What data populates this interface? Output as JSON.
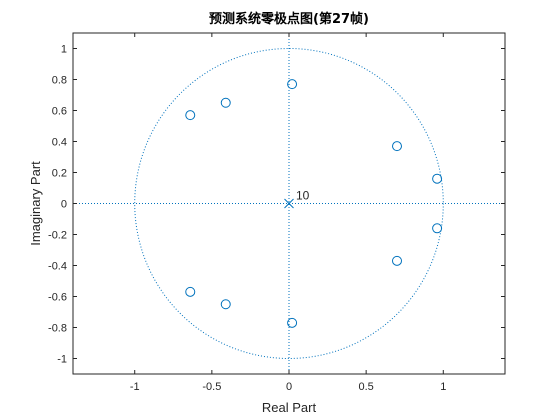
{
  "chart_data": {
    "type": "scatter",
    "title": "预测系统零极点图(第27帧)",
    "xlabel": "Real Part",
    "ylabel": "Imaginary Part",
    "xlim": [
      -1.4,
      1.4
    ],
    "ylim": [
      -1.1,
      1.1
    ],
    "xticks": [
      -1,
      -0.5,
      0,
      0.5,
      1
    ],
    "xtick_labels": [
      "-1",
      "-0.5",
      "0",
      "0.5",
      "1"
    ],
    "yticks": [
      -1,
      -0.8,
      -0.6,
      -0.4,
      -0.2,
      0,
      0.2,
      0.4,
      0.6,
      0.8,
      1
    ],
    "ytick_labels": [
      "-1",
      "-0.8",
      "-0.6",
      "-0.4",
      "-0.2",
      "0",
      "0.2",
      "0.4",
      "0.6",
      "0.8",
      "1"
    ],
    "grid": false,
    "unit_circle": true,
    "zeros": [
      {
        "x": 0.02,
        "y": 0.77
      },
      {
        "x": -0.41,
        "y": 0.65
      },
      {
        "x": -0.64,
        "y": 0.57
      },
      {
        "x": 0.7,
        "y": 0.37
      },
      {
        "x": 0.96,
        "y": 0.16
      },
      {
        "x": 0.96,
        "y": -0.16
      },
      {
        "x": 0.7,
        "y": -0.37
      },
      {
        "x": -0.64,
        "y": -0.57
      },
      {
        "x": -0.41,
        "y": -0.65
      },
      {
        "x": 0.02,
        "y": -0.77
      }
    ],
    "poles": [
      {
        "x": 0,
        "y": 0,
        "multiplicity_label": "10"
      }
    ],
    "colors": {
      "marker": "#0072BD",
      "axes": "#262626",
      "reference": "#0072BD"
    }
  }
}
